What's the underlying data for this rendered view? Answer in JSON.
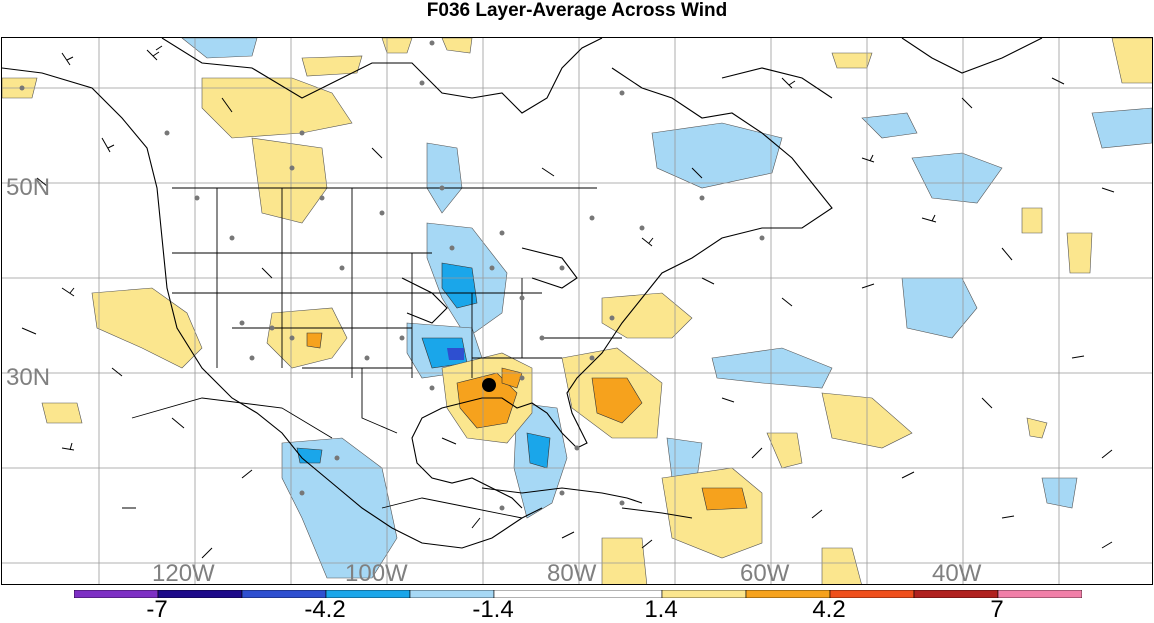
{
  "title": "F036 Layer-Average Across Wind",
  "map": {
    "lat_labels": [
      "50N",
      "30N"
    ],
    "lon_labels": [
      "120W",
      "100W",
      "80W",
      "60W",
      "40W"
    ],
    "marker": "storm-center-marker"
  },
  "colorbar": {
    "colors": [
      "#7d2fc4",
      "#1d0a8a",
      "#2e4fd0",
      "#1aa6ea",
      "#a6d8f5",
      "#ffffff",
      "#fbe68e",
      "#f6a21d",
      "#ef4f1c",
      "#b0211f",
      "#f07fa8"
    ],
    "labels": [
      "-7",
      "-4.2",
      "-1.4",
      "1.4",
      "4.2",
      "7"
    ]
  }
}
